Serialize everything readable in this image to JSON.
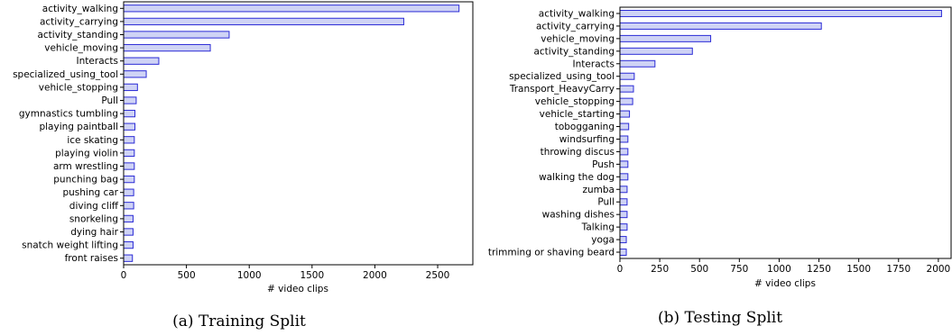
{
  "colors": {
    "bar_fill": "#cfd3f5",
    "bar_edge": "#2b2bd6",
    "axis": "#000000"
  },
  "chart_data": [
    {
      "type": "bar",
      "orientation": "horizontal",
      "caption": "(a) Training Split",
      "xlabel": "# video clips",
      "xlim": [
        0,
        2780
      ],
      "xticks": [
        0,
        500,
        1000,
        1500,
        2000,
        2500
      ],
      "categories": [
        "activity_walking",
        "activity_carrying",
        "activity_standing",
        "vehicle_moving",
        "Interacts",
        "specialized_using_tool",
        "vehicle_stopping",
        "Pull",
        "gymnastics tumbling",
        "playing paintball",
        "ice skating",
        "playing violin",
        "arm wrestling",
        "punching bag",
        "pushing car",
        "diving cliff",
        "snorkeling",
        "dying hair",
        "snatch weight lifting",
        "front raises"
      ],
      "values": [
        2670,
        2230,
        840,
        690,
        280,
        180,
        110,
        100,
        90,
        90,
        85,
        85,
        85,
        85,
        80,
        80,
        75,
        75,
        75,
        70
      ],
      "grid": false
    },
    {
      "type": "bar",
      "orientation": "horizontal",
      "caption": "(b) Testing Split",
      "xlabel": "# video clips",
      "xlim": [
        0,
        2080
      ],
      "xticks": [
        0,
        250,
        500,
        750,
        1000,
        1250,
        1500,
        1750,
        2000
      ],
      "categories": [
        "activity_walking",
        "activity_carrying",
        "vehicle_moving",
        "activity_standing",
        "Interacts",
        "specialized_using_tool",
        "Transport_HeavyCarry",
        "vehicle_stopping",
        "vehicle_starting",
        "tobogganing",
        "windsurfing",
        "throwing discus",
        "Push",
        "walking the dog",
        "zumba",
        "Pull",
        "washing dishes",
        "Talking",
        "yoga",
        "trimming or shaving beard"
      ],
      "values": [
        2020,
        1265,
        570,
        455,
        220,
        90,
        85,
        80,
        60,
        55,
        50,
        50,
        50,
        50,
        45,
        45,
        45,
        45,
        40,
        40
      ],
      "grid": false
    }
  ]
}
